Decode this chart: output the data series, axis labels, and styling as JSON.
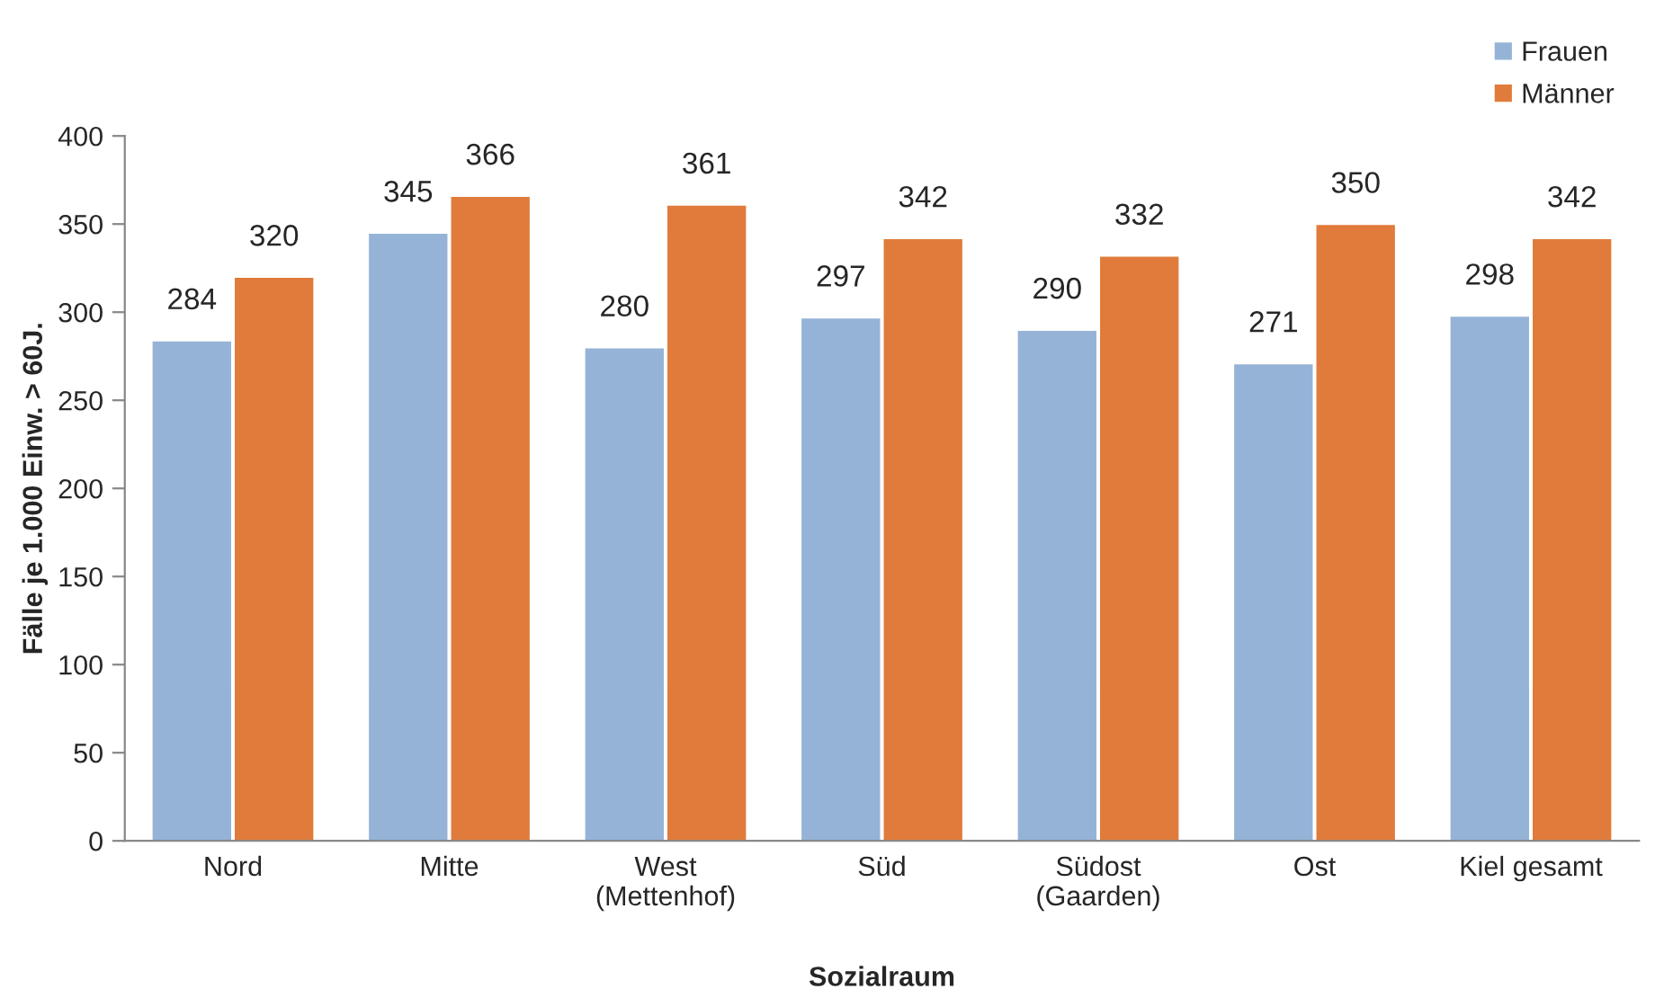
{
  "chart_data": {
    "type": "bar",
    "xlabel": "Sozialraum",
    "ylabel": "Fälle je 1.000 Einw. > 60J.",
    "categories": [
      "Nord",
      "Mitte",
      "West\n(Mettenhof)",
      "Süd",
      "Südost\n(Gaarden)",
      "Ost",
      "Kiel gesamt"
    ],
    "series": [
      {
        "name": "Frauen",
        "color": "#95b3d7",
        "values": [
          284,
          345,
          280,
          297,
          290,
          271,
          298
        ]
      },
      {
        "name": "Männer",
        "color": "#e07b3b",
        "values": [
          320,
          366,
          361,
          342,
          332,
          350,
          342
        ]
      }
    ],
    "ylim": [
      0,
      400
    ],
    "yticks": [
      0,
      50,
      100,
      150,
      200,
      250,
      300,
      350,
      400
    ],
    "data_labels": true,
    "grid": false,
    "legend": "top right"
  }
}
